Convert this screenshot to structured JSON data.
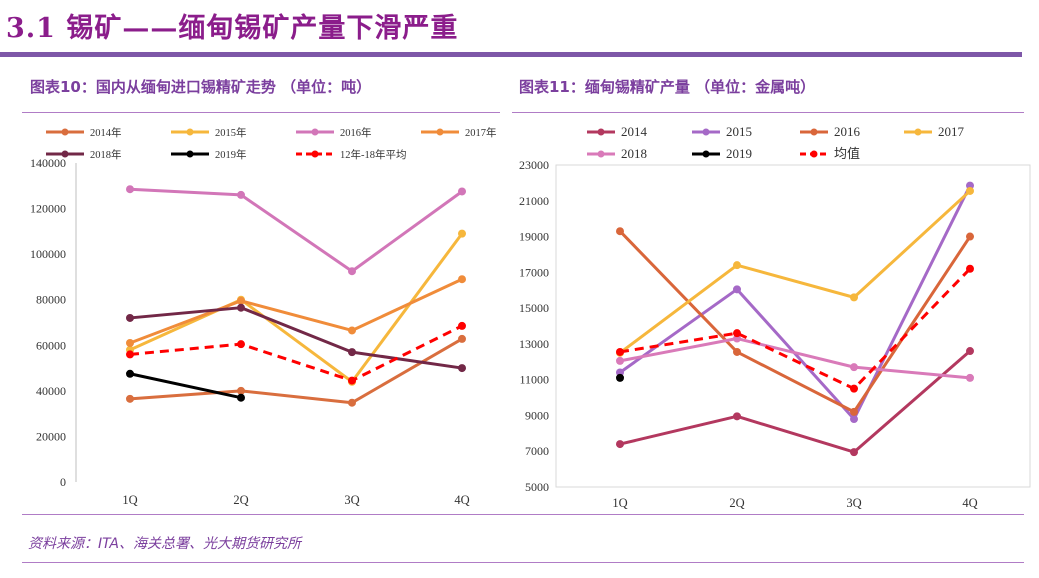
{
  "page": {
    "title": "3.1 锡矿——缅甸锡矿产量下滑严重",
    "source": "资料来源：ITA、海关总署、光大期货研究所"
  },
  "colors": {
    "accent": "#8B1D8B",
    "bar": "#7E57A8",
    "rule": "#B07CC6"
  },
  "chart_data": [
    {
      "type": "line",
      "title": "图表10：国内从缅甸进口锡精矿走势 （单位：吨）",
      "categories": [
        "1Q",
        "2Q",
        "3Q",
        "4Q"
      ],
      "ylim": [
        0,
        140000
      ],
      "yticks": [
        0,
        20000,
        40000,
        60000,
        80000,
        100000,
        120000,
        140000
      ],
      "series": [
        {
          "name": "2014年",
          "color": "#D96E3E",
          "dashed": false,
          "values": [
            36500,
            40000,
            34800,
            62800
          ]
        },
        {
          "name": "2015年",
          "color": "#F6B73C",
          "dashed": false,
          "values": [
            58000,
            80000,
            44000,
            109000
          ]
        },
        {
          "name": "2016年",
          "color": "#D276B8",
          "dashed": false,
          "values": [
            128500,
            126000,
            92500,
            127500
          ]
        },
        {
          "name": "2017年",
          "color": "#F08C3A",
          "dashed": false,
          "values": [
            61000,
            79500,
            66500,
            89000
          ]
        },
        {
          "name": "2018年",
          "color": "#722847",
          "dashed": false,
          "values": [
            72000,
            76500,
            57000,
            50000
          ]
        },
        {
          "name": "2019年",
          "color": "#000000",
          "dashed": false,
          "values": [
            47500,
            37000,
            null,
            null
          ]
        },
        {
          "name": "12年-18年平均",
          "color": "#FF0000",
          "dashed": true,
          "values": [
            56000,
            60500,
            44500,
            68500
          ]
        }
      ]
    },
    {
      "type": "line",
      "title": "图表11：缅甸锡精矿产量 （单位：金属吨）",
      "categories": [
        "1Q",
        "2Q",
        "3Q",
        "4Q"
      ],
      "ylim": [
        5000,
        23000
      ],
      "yticks": [
        5000,
        7000,
        9000,
        11000,
        13000,
        15000,
        17000,
        19000,
        21000,
        23000
      ],
      "series": [
        {
          "name": "2014",
          "color": "#B3385F",
          "dashed": false,
          "values": [
            7400,
            8950,
            6950,
            12600
          ]
        },
        {
          "name": "2015",
          "color": "#A569C7",
          "dashed": false,
          "values": [
            11400,
            16050,
            8800,
            21850
          ]
        },
        {
          "name": "2016",
          "color": "#D9663A",
          "dashed": false,
          "values": [
            19300,
            12550,
            9200,
            19000
          ]
        },
        {
          "name": "2017",
          "color": "#F6B73C",
          "dashed": false,
          "values": [
            12500,
            17400,
            15600,
            21550
          ]
        },
        {
          "name": "2018",
          "color": "#D97AB9",
          "dashed": false,
          "values": [
            12050,
            13300,
            11700,
            11100
          ]
        },
        {
          "name": "2019",
          "color": "#000000",
          "dashed": false,
          "values": [
            11100,
            null,
            null,
            null
          ]
        },
        {
          "name": "均值",
          "color": "#FF0000",
          "dashed": true,
          "values": [
            12550,
            13600,
            10500,
            17200
          ]
        }
      ]
    }
  ]
}
